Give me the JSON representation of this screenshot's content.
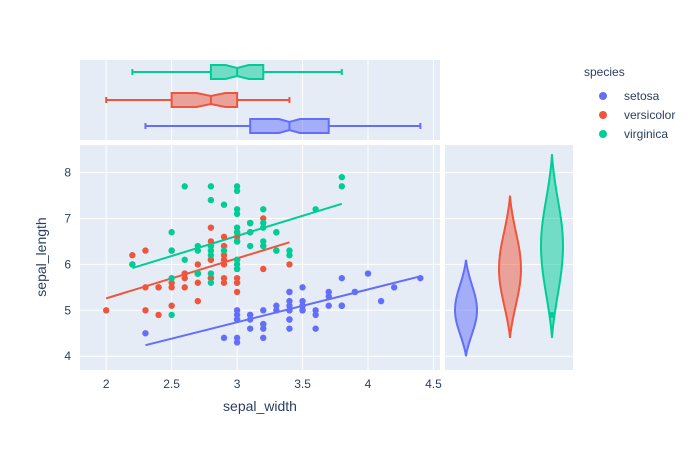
{
  "chart_data": {
    "type": "scatter",
    "title": "",
    "xlabel": "sepal_width",
    "ylabel": "sepal_length",
    "xlim": [
      1.8,
      4.55
    ],
    "ylim": [
      3.7,
      8.6
    ],
    "x_ticks": [
      "2",
      "2.5",
      "3",
      "3.5",
      "4",
      "4.5"
    ],
    "y_ticks": [
      "4",
      "5",
      "6",
      "7",
      "8"
    ],
    "legend": {
      "title": "species",
      "placement": "top-right",
      "items": [
        {
          "name": "setosa",
          "color": "#636efa"
        },
        {
          "name": "versicolor",
          "color": "#EF553B"
        },
        {
          "name": "virginica",
          "color": "#00cc96"
        }
      ]
    },
    "series": [
      {
        "name": "setosa",
        "color": "#636efa",
        "points": [
          [
            3.5,
            5.1
          ],
          [
            3.0,
            4.9
          ],
          [
            3.2,
            4.7
          ],
          [
            3.1,
            4.6
          ],
          [
            3.6,
            5.0
          ],
          [
            3.9,
            5.4
          ],
          [
            3.4,
            4.6
          ],
          [
            3.4,
            5.0
          ],
          [
            2.9,
            4.4
          ],
          [
            3.1,
            4.9
          ],
          [
            3.7,
            5.4
          ],
          [
            3.4,
            4.8
          ],
          [
            3.0,
            4.8
          ],
          [
            3.0,
            4.3
          ],
          [
            4.0,
            5.8
          ],
          [
            4.4,
            5.7
          ],
          [
            3.9,
            5.4
          ],
          [
            3.5,
            5.1
          ],
          [
            3.8,
            5.7
          ],
          [
            3.8,
            5.1
          ],
          [
            3.4,
            5.4
          ],
          [
            3.7,
            5.1
          ],
          [
            3.6,
            4.6
          ],
          [
            3.3,
            5.1
          ],
          [
            3.4,
            4.8
          ],
          [
            3.0,
            5.0
          ],
          [
            3.4,
            5.0
          ],
          [
            3.5,
            5.2
          ],
          [
            3.4,
            5.2
          ],
          [
            3.2,
            4.7
          ],
          [
            3.1,
            4.8
          ],
          [
            3.4,
            5.4
          ],
          [
            4.1,
            5.2
          ],
          [
            4.2,
            5.5
          ],
          [
            3.1,
            4.9
          ],
          [
            3.2,
            5.0
          ],
          [
            3.5,
            5.5
          ],
          [
            3.6,
            4.9
          ],
          [
            3.0,
            4.4
          ],
          [
            3.4,
            5.1
          ],
          [
            3.5,
            5.0
          ],
          [
            2.3,
            4.5
          ],
          [
            3.2,
            4.4
          ],
          [
            3.5,
            5.0
          ],
          [
            3.8,
            5.1
          ],
          [
            3.0,
            4.8
          ],
          [
            3.8,
            5.1
          ],
          [
            3.2,
            4.6
          ],
          [
            3.7,
            5.3
          ],
          [
            3.3,
            5.0
          ]
        ],
        "trend": {
          "x": [
            2.3,
            4.4
          ],
          "y": [
            4.24,
            5.74
          ]
        },
        "marginal_box": {
          "min": 2.3,
          "q1": 3.1,
          "median": 3.4,
          "q3": 3.7,
          "max": 4.4,
          "notch": [
            3.32,
            3.48
          ]
        },
        "violin": {
          "min": 4.0,
          "max": 6.1,
          "peak": 5.0,
          "outliers": []
        }
      },
      {
        "name": "versicolor",
        "color": "#EF553B",
        "points": [
          [
            3.2,
            7.0
          ],
          [
            3.2,
            6.4
          ],
          [
            3.1,
            6.9
          ],
          [
            2.3,
            5.5
          ],
          [
            2.8,
            6.5
          ],
          [
            2.8,
            5.7
          ],
          [
            3.3,
            6.3
          ],
          [
            2.4,
            4.9
          ],
          [
            2.9,
            6.6
          ],
          [
            2.7,
            5.2
          ],
          [
            2.0,
            5.0
          ],
          [
            3.0,
            5.9
          ],
          [
            2.2,
            6.0
          ],
          [
            2.9,
            6.1
          ],
          [
            2.9,
            5.6
          ],
          [
            3.1,
            6.7
          ],
          [
            3.0,
            5.6
          ],
          [
            2.7,
            5.8
          ],
          [
            2.2,
            6.2
          ],
          [
            2.5,
            5.6
          ],
          [
            3.2,
            5.9
          ],
          [
            2.8,
            6.1
          ],
          [
            2.5,
            6.3
          ],
          [
            2.8,
            6.1
          ],
          [
            2.9,
            6.4
          ],
          [
            3.0,
            6.6
          ],
          [
            2.8,
            6.8
          ],
          [
            3.0,
            6.7
          ],
          [
            2.9,
            6.0
          ],
          [
            2.6,
            5.7
          ],
          [
            2.4,
            5.5
          ],
          [
            2.4,
            5.5
          ],
          [
            2.7,
            5.8
          ],
          [
            2.7,
            6.0
          ],
          [
            3.0,
            5.4
          ],
          [
            3.4,
            6.0
          ],
          [
            3.1,
            6.7
          ],
          [
            2.3,
            6.3
          ],
          [
            3.0,
            5.6
          ],
          [
            2.5,
            5.5
          ],
          [
            2.6,
            5.5
          ],
          [
            3.0,
            6.1
          ],
          [
            2.6,
            5.8
          ],
          [
            2.3,
            5.0
          ],
          [
            2.7,
            5.6
          ],
          [
            3.0,
            5.7
          ],
          [
            2.9,
            5.7
          ],
          [
            2.9,
            6.2
          ],
          [
            2.5,
            5.1
          ],
          [
            2.8,
            5.7
          ]
        ],
        "trend": {
          "x": [
            2.0,
            3.4
          ],
          "y": [
            5.26,
            6.48
          ]
        },
        "marginal_box": {
          "min": 2.0,
          "q1": 2.5,
          "median": 2.8,
          "q3": 3.0,
          "max": 3.4,
          "notch": [
            2.69,
            2.91
          ]
        },
        "violin": {
          "min": 4.4,
          "max": 7.5,
          "peak": 5.9,
          "outliers": []
        }
      },
      {
        "name": "virginica",
        "color": "#00cc96",
        "points": [
          [
            3.3,
            6.3
          ],
          [
            2.7,
            5.8
          ],
          [
            3.0,
            7.1
          ],
          [
            2.9,
            6.3
          ],
          [
            3.0,
            6.5
          ],
          [
            3.0,
            7.6
          ],
          [
            2.5,
            4.9
          ],
          [
            2.9,
            7.3
          ],
          [
            2.5,
            6.7
          ],
          [
            3.6,
            7.2
          ],
          [
            3.2,
            6.5
          ],
          [
            2.7,
            6.4
          ],
          [
            3.0,
            6.8
          ],
          [
            2.5,
            5.7
          ],
          [
            2.8,
            5.8
          ],
          [
            3.2,
            6.4
          ],
          [
            3.0,
            6.5
          ],
          [
            3.8,
            7.7
          ],
          [
            2.6,
            7.7
          ],
          [
            2.2,
            6.0
          ],
          [
            3.2,
            6.9
          ],
          [
            2.8,
            5.6
          ],
          [
            2.8,
            7.7
          ],
          [
            2.7,
            6.3
          ],
          [
            3.3,
            6.7
          ],
          [
            3.2,
            7.2
          ],
          [
            2.8,
            6.2
          ],
          [
            3.0,
            6.1
          ],
          [
            2.8,
            6.4
          ],
          [
            3.0,
            7.2
          ],
          [
            2.8,
            7.4
          ],
          [
            3.8,
            7.9
          ],
          [
            2.8,
            6.4
          ],
          [
            2.8,
            6.3
          ],
          [
            2.6,
            6.1
          ],
          [
            3.0,
            7.7
          ],
          [
            3.4,
            6.3
          ],
          [
            3.1,
            6.4
          ],
          [
            3.0,
            6.0
          ],
          [
            3.1,
            6.9
          ],
          [
            3.1,
            6.7
          ],
          [
            3.1,
            6.9
          ],
          [
            2.7,
            5.8
          ],
          [
            3.2,
            6.8
          ],
          [
            3.3,
            6.7
          ],
          [
            3.0,
            6.7
          ],
          [
            2.5,
            6.3
          ],
          [
            3.0,
            6.5
          ],
          [
            3.4,
            6.2
          ],
          [
            3.0,
            5.9
          ]
        ],
        "trend": {
          "x": [
            2.2,
            3.8
          ],
          "y": [
            5.92,
            7.32
          ]
        },
        "marginal_box": {
          "min": 2.2,
          "q1": 2.8,
          "median": 3.0,
          "q3": 3.2,
          "max": 3.8,
          "notch": [
            2.91,
            3.09
          ]
        },
        "violin": {
          "min": 4.4,
          "max": 8.4,
          "peak": 6.4,
          "outliers": [
            4.9
          ]
        }
      }
    ]
  }
}
